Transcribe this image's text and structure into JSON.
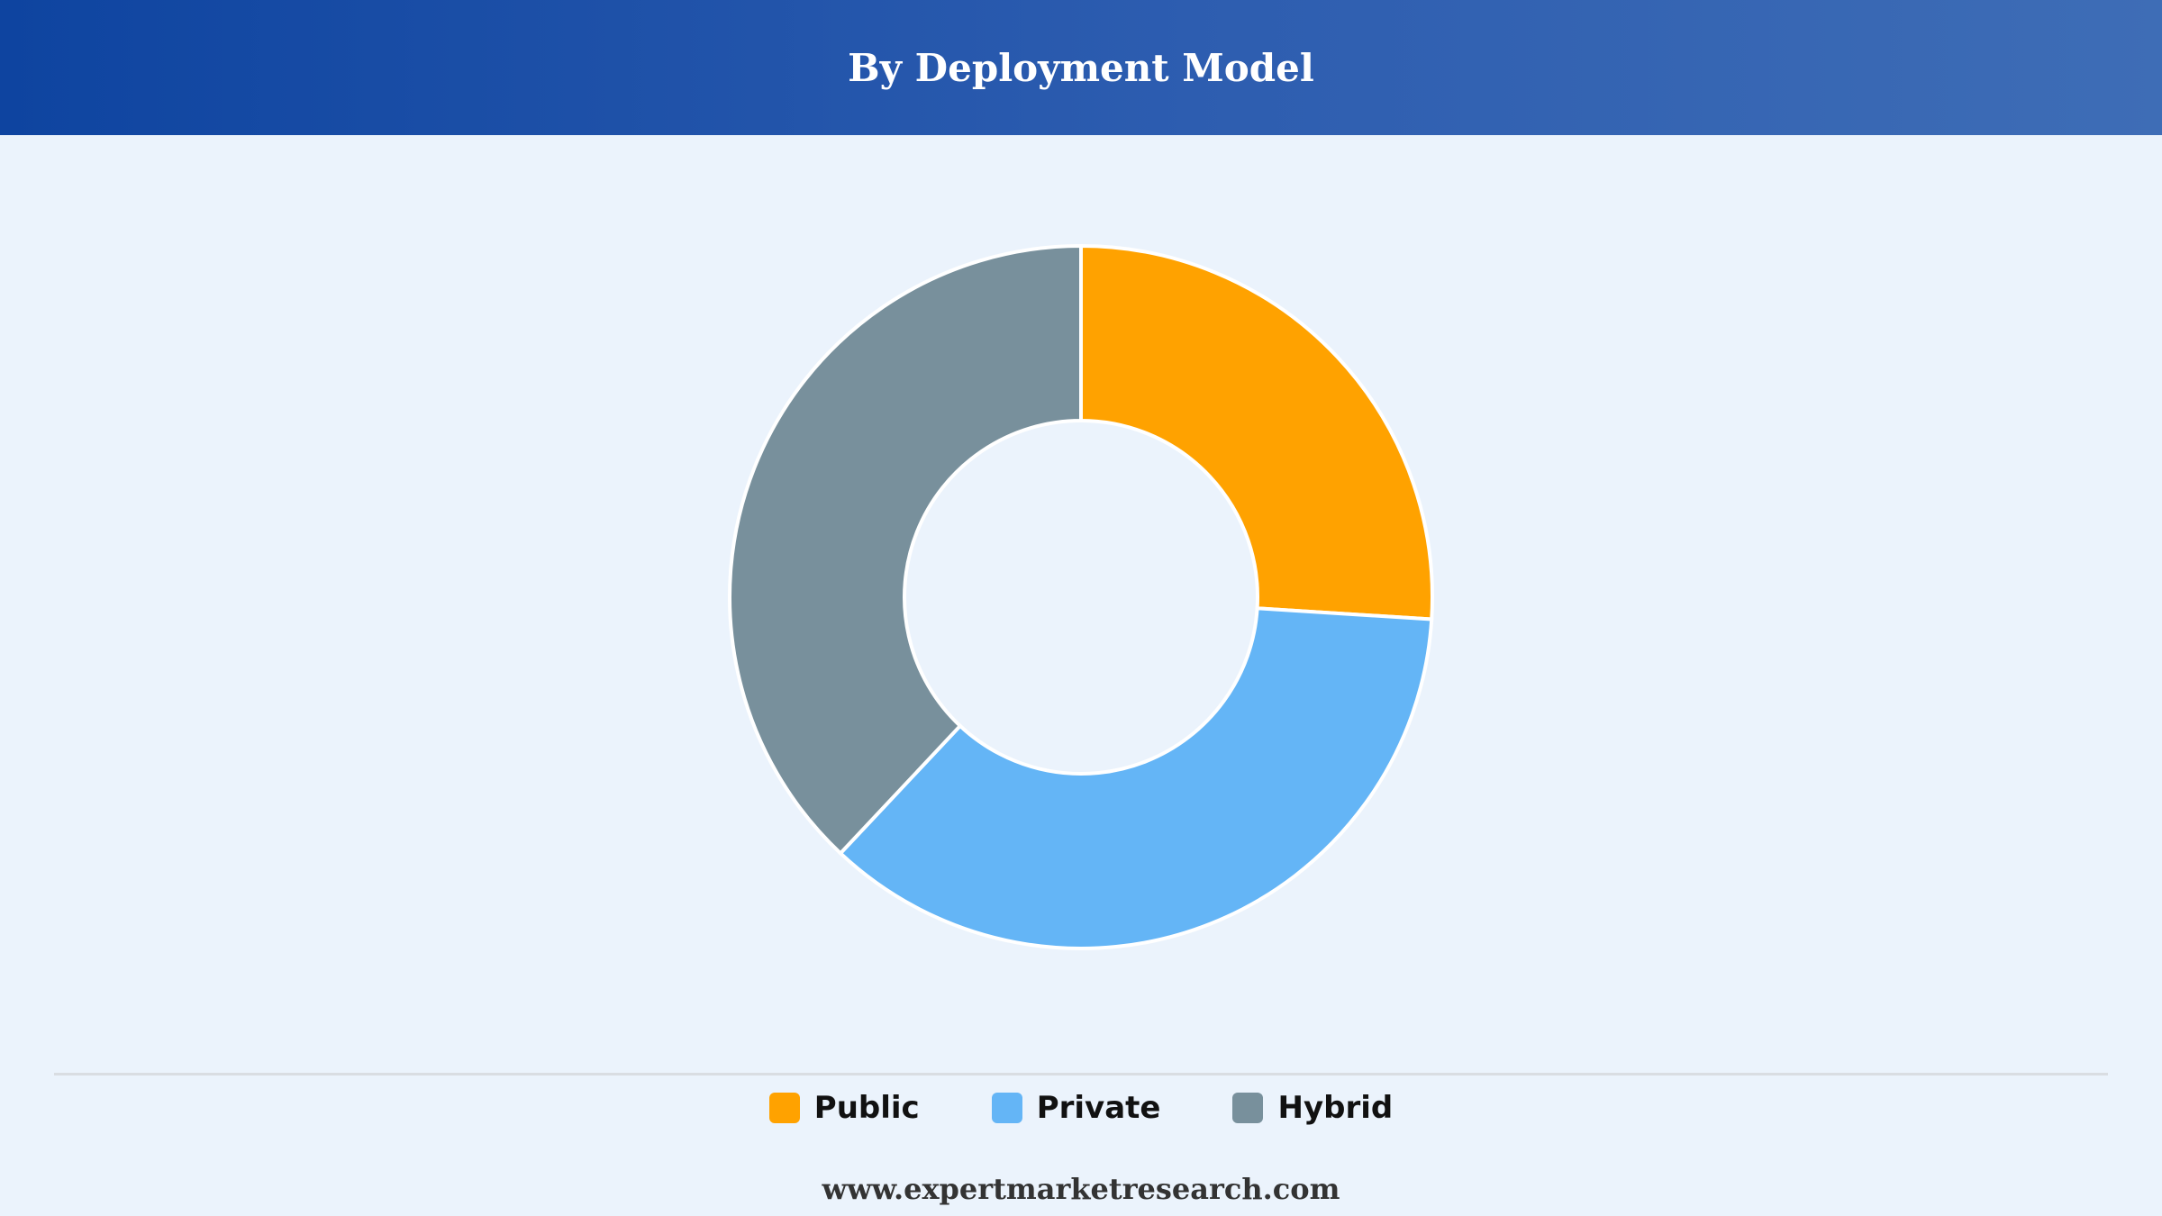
{
  "header": {
    "title": "By Deployment Model"
  },
  "chart_data": {
    "type": "pie",
    "title": "By Deployment Model",
    "donut": true,
    "legend_position": "bottom",
    "categories": [
      "Public",
      "Private",
      "Hybrid"
    ],
    "values": [
      26,
      36,
      38
    ],
    "colors": [
      "#ffa200",
      "#64b5f6",
      "#78909c"
    ],
    "start": "top, clockwise"
  },
  "footer": {
    "website": "www.expertmarketresearch.com"
  }
}
